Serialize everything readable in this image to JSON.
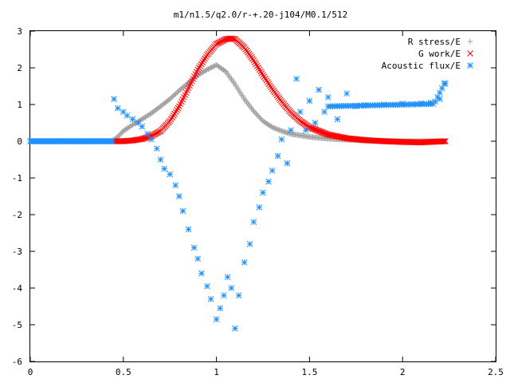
{
  "chart_data": {
    "type": "scatter",
    "title": "m1/n1.5/q2.0/r-+.20-j104/M0.1/512",
    "xlabel": "",
    "ylabel": "",
    "xlim": [
      0,
      2.5
    ],
    "ylim": [
      -6,
      3
    ],
    "xticks": [
      "0",
      "0.5",
      "1",
      "1.5",
      "2",
      "2.5"
    ],
    "yticks": [
      "-6",
      "-5",
      "-4",
      "-3",
      "-2",
      "-1",
      "0",
      "1",
      "2",
      "3"
    ],
    "legend_position": "top-right",
    "grid": false,
    "series": [
      {
        "name": "R stress/E",
        "marker": "+",
        "color": "#a0a0a0",
        "x": [
          0.0,
          0.44,
          0.47,
          0.5,
          0.55,
          0.6,
          0.65,
          0.7,
          0.75,
          0.8,
          0.85,
          0.9,
          0.95,
          1.0,
          1.05,
          1.1,
          1.15,
          1.2,
          1.25,
          1.3,
          1.35,
          1.4,
          1.5,
          1.6,
          1.7,
          1.8,
          1.9,
          2.0,
          2.1,
          2.23
        ],
        "y": [
          0.0,
          0.0,
          0.12,
          0.28,
          0.45,
          0.6,
          0.76,
          0.95,
          1.15,
          1.38,
          1.6,
          1.8,
          1.95,
          2.08,
          1.9,
          1.55,
          1.15,
          0.82,
          0.55,
          0.38,
          0.28,
          0.2,
          0.12,
          0.07,
          0.04,
          0.02,
          0.01,
          0.0,
          0.0,
          0.0
        ]
      },
      {
        "name": "G work/E",
        "marker": "x",
        "color": "#ff0000",
        "x": [
          0.45,
          0.5,
          0.55,
          0.6,
          0.65,
          0.7,
          0.75,
          0.8,
          0.85,
          0.9,
          0.95,
          1.0,
          1.05,
          1.08,
          1.1,
          1.15,
          1.2,
          1.25,
          1.3,
          1.35,
          1.4,
          1.45,
          1.5,
          1.6,
          1.7,
          1.8,
          1.9,
          2.0,
          2.1,
          2.23
        ],
        "y": [
          0.0,
          0.0,
          0.02,
          0.06,
          0.14,
          0.28,
          0.55,
          0.95,
          1.45,
          1.95,
          2.35,
          2.65,
          2.78,
          2.8,
          2.78,
          2.55,
          2.2,
          1.8,
          1.42,
          1.08,
          0.78,
          0.55,
          0.38,
          0.18,
          0.08,
          0.03,
          0.0,
          -0.02,
          -0.03,
          0.0
        ]
      },
      {
        "name": "Acoustic flux/E",
        "marker": "*",
        "color": "#1e90ff",
        "x": [
          0.0,
          0.1,
          0.2,
          0.3,
          0.4,
          0.44,
          0.45,
          0.47,
          0.5,
          0.52,
          0.55,
          0.58,
          0.6,
          0.63,
          0.65,
          0.68,
          0.7,
          0.72,
          0.75,
          0.78,
          0.8,
          0.82,
          0.85,
          0.88,
          0.9,
          0.92,
          0.95,
          0.97,
          1.0,
          1.02,
          1.04,
          1.06,
          1.08,
          1.1,
          1.12,
          1.15,
          1.18,
          1.2,
          1.23,
          1.25,
          1.28,
          1.3,
          1.33,
          1.35,
          1.38,
          1.4,
          1.43,
          1.45,
          1.48,
          1.5,
          1.53,
          1.55,
          1.58,
          1.6,
          1.65,
          1.7,
          1.75,
          1.8,
          1.9,
          2.0,
          2.1,
          2.15,
          2.2,
          2.23
        ],
        "y": [
          0.0,
          0.0,
          0.0,
          0.0,
          0.0,
          0.0,
          1.15,
          0.9,
          0.8,
          0.7,
          0.6,
          0.5,
          0.4,
          0.2,
          0.05,
          -0.2,
          -0.5,
          -0.75,
          -0.9,
          -1.2,
          -1.5,
          -1.9,
          -2.4,
          -2.9,
          -3.2,
          -3.6,
          -3.95,
          -4.3,
          -4.85,
          -4.55,
          -4.2,
          -3.7,
          -4.0,
          -5.1,
          -4.2,
          -3.3,
          -2.8,
          -2.2,
          -1.8,
          -1.4,
          -1.1,
          -0.8,
          -0.4,
          0.05,
          -0.6,
          0.3,
          1.7,
          0.8,
          0.3,
          1.1,
          0.5,
          1.4,
          0.8,
          1.2,
          0.6,
          1.3,
          0.95,
          0.98,
          1.0,
          1.02,
          1.03,
          1.05,
          1.15,
          1.58
        ]
      }
    ]
  }
}
